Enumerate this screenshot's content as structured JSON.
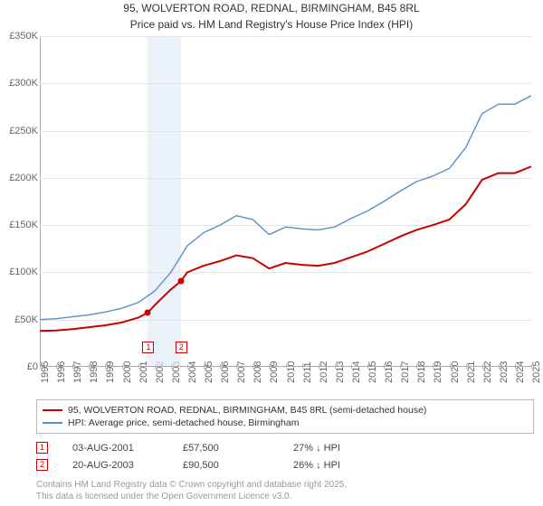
{
  "title": {
    "line1": "95, WOLVERTON ROAD, REDNAL, BIRMINGHAM, B45 8RL",
    "line2": "Price paid vs. HM Land Registry's House Price Index (HPI)"
  },
  "chart": {
    "type": "line",
    "background_color": "#ffffff",
    "grid_color": "#e5e5e5",
    "axis_color": "#aaaaaa",
    "label_color": "#666666",
    "label_fontsize": 11,
    "y": {
      "min": 0,
      "max": 350000,
      "step": 50000,
      "labels": [
        "£0",
        "£50K",
        "£100K",
        "£150K",
        "£200K",
        "£250K",
        "£300K",
        "£350K"
      ]
    },
    "x": {
      "min": 1995,
      "max": 2025,
      "step": 1,
      "labels": [
        "1995",
        "1996",
        "1997",
        "1998",
        "1999",
        "2000",
        "2001",
        "2002",
        "2003",
        "2004",
        "2005",
        "2006",
        "2007",
        "2008",
        "2009",
        "2010",
        "2011",
        "2012",
        "2013",
        "2014",
        "2015",
        "2016",
        "2017",
        "2018",
        "2019",
        "2020",
        "2021",
        "2022",
        "2023",
        "2024",
        "2025"
      ]
    },
    "highlight_band": {
      "from_year": 2001.6,
      "to_year": 2003.6,
      "color": "#e3edf7"
    },
    "series": [
      {
        "id": "property",
        "label": "95, WOLVERTON ROAD, REDNAL, BIRMINGHAM, B45 8RL (semi-detached house)",
        "color": "#cc0000",
        "width": 2,
        "data": [
          [
            1995,
            38000
          ],
          [
            1996,
            38500
          ],
          [
            1997,
            40000
          ],
          [
            1998,
            42000
          ],
          [
            1999,
            44000
          ],
          [
            2000,
            47000
          ],
          [
            2001,
            52000
          ],
          [
            2001.6,
            57500
          ],
          [
            2002,
            65000
          ],
          [
            2003,
            82000
          ],
          [
            2003.6,
            90500
          ],
          [
            2004,
            100000
          ],
          [
            2005,
            107000
          ],
          [
            2006,
            112000
          ],
          [
            2007,
            118000
          ],
          [
            2008,
            115000
          ],
          [
            2009,
            104000
          ],
          [
            2010,
            110000
          ],
          [
            2011,
            108000
          ],
          [
            2012,
            107000
          ],
          [
            2013,
            110000
          ],
          [
            2014,
            116000
          ],
          [
            2015,
            122000
          ],
          [
            2016,
            130000
          ],
          [
            2017,
            138000
          ],
          [
            2018,
            145000
          ],
          [
            2019,
            150000
          ],
          [
            2020,
            156000
          ],
          [
            2021,
            172000
          ],
          [
            2022,
            198000
          ],
          [
            2023,
            205000
          ],
          [
            2024,
            205000
          ],
          [
            2025,
            212000
          ]
        ]
      },
      {
        "id": "hpi",
        "label": "HPI: Average price, semi-detached house, Birmingham",
        "color": "#5b8fc7",
        "width": 1.4,
        "data": [
          [
            1995,
            50000
          ],
          [
            1996,
            51000
          ],
          [
            1997,
            53000
          ],
          [
            1998,
            55000
          ],
          [
            1999,
            58000
          ],
          [
            2000,
            62000
          ],
          [
            2001,
            68000
          ],
          [
            2002,
            80000
          ],
          [
            2003,
            100000
          ],
          [
            2004,
            128000
          ],
          [
            2005,
            142000
          ],
          [
            2006,
            150000
          ],
          [
            2007,
            160000
          ],
          [
            2008,
            156000
          ],
          [
            2009,
            140000
          ],
          [
            2010,
            148000
          ],
          [
            2011,
            146000
          ],
          [
            2012,
            145000
          ],
          [
            2013,
            148000
          ],
          [
            2014,
            157000
          ],
          [
            2015,
            165000
          ],
          [
            2016,
            175000
          ],
          [
            2017,
            186000
          ],
          [
            2018,
            196000
          ],
          [
            2019,
            202000
          ],
          [
            2020,
            210000
          ],
          [
            2021,
            232000
          ],
          [
            2022,
            268000
          ],
          [
            2023,
            278000
          ],
          [
            2024,
            278000
          ],
          [
            2025,
            287000
          ]
        ]
      }
    ],
    "sale_markers": [
      {
        "n": "1",
        "year": 2001.6,
        "price": 57500
      },
      {
        "n": "2",
        "year": 2003.6,
        "price": 90500
      }
    ]
  },
  "sales": [
    {
      "n": "1",
      "date": "03-AUG-2001",
      "price": "£57,500",
      "delta": "27% ↓ HPI"
    },
    {
      "n": "2",
      "date": "20-AUG-2003",
      "price": "£90,500",
      "delta": "26% ↓ HPI"
    }
  ],
  "footer": {
    "line1": "Contains HM Land Registry data © Crown copyright and database right 2025.",
    "line2": "This data is licensed under the Open Government Licence v3.0."
  }
}
